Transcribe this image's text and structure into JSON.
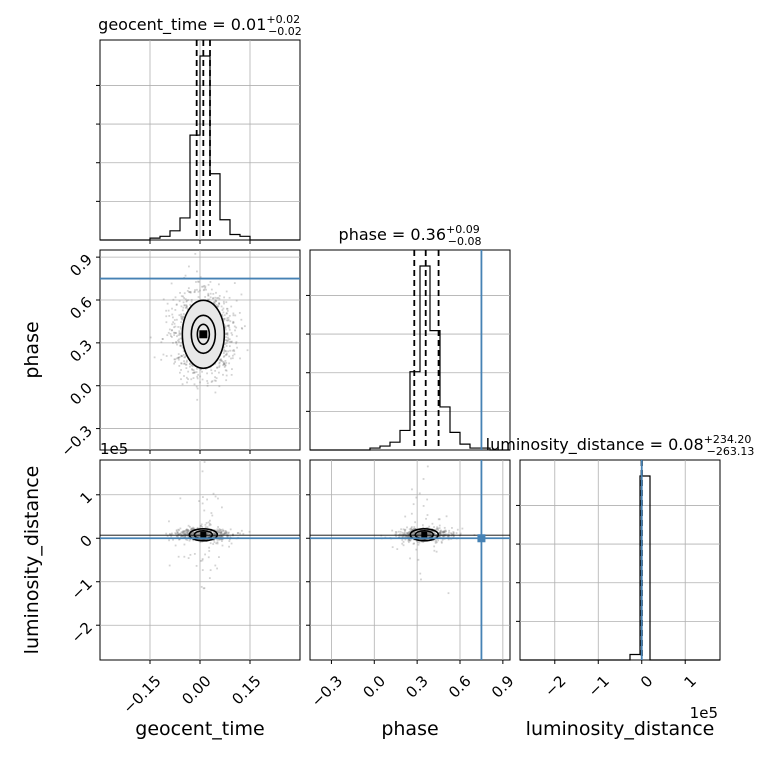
{
  "chart_data": [
    {
      "type": "histogram",
      "panel": "geocent_time-1d",
      "title": {
        "param": "geocent_time",
        "median": "0.01",
        "upper": "+0.02",
        "lower": "−0.02"
      },
      "xlim": [
        -0.3,
        0.3
      ],
      "bin_edges": [
        -0.3,
        -0.27,
        -0.24,
        -0.21,
        -0.18,
        -0.15,
        -0.12,
        -0.09,
        -0.06,
        -0.03,
        0.0,
        0.03,
        0.06,
        0.09,
        0.12,
        0.15,
        0.18,
        0.21,
        0.24,
        0.27,
        0.3
      ],
      "counts": [
        0,
        0,
        0,
        0,
        0,
        0.01,
        0.02,
        0.05,
        0.12,
        0.57,
        1.0,
        0.36,
        0.11,
        0.03,
        0.02,
        0.0,
        0,
        0,
        0,
        0
      ],
      "quantiles": [
        -0.01,
        0.01,
        0.03
      ],
      "xticks": [
        "−0.15",
        "0.00",
        "0.15"
      ],
      "xticks_shown": false
    },
    {
      "type": "scatter",
      "panel": "phase-vs-geocent_time",
      "xlim": [
        -0.3,
        0.3
      ],
      "ylim": [
        -0.45,
        0.95
      ],
      "yticks": [
        "0.9",
        "0.6",
        "0.3",
        "0.0",
        "−0.3"
      ],
      "ylabel": "phase",
      "density_peak": {
        "x": 0.01,
        "y": 0.36
      },
      "truth": {
        "phase": 0.75
      }
    },
    {
      "type": "histogram",
      "panel": "phase-1d",
      "title": {
        "param": "phase",
        "median": "0.36",
        "upper": "+0.09",
        "lower": "−0.08"
      },
      "xlim": [
        -0.45,
        0.95
      ],
      "bin_edges": [
        -0.45,
        -0.38,
        -0.31,
        -0.24,
        -0.17,
        -0.1,
        -0.03,
        0.04,
        0.11,
        0.18,
        0.25,
        0.32,
        0.39,
        0.46,
        0.53,
        0.6,
        0.67,
        0.74,
        0.81,
        0.88,
        0.95
      ],
      "counts": [
        0,
        0,
        0,
        0,
        0,
        0,
        0.01,
        0.02,
        0.04,
        0.1,
        0.4,
        0.94,
        0.61,
        0.22,
        0.09,
        0.03,
        0.01,
        0.01,
        0,
        0
      ],
      "quantiles": [
        0.28,
        0.36,
        0.45
      ],
      "truth": 0.75
    },
    {
      "type": "scatter",
      "panel": "luminosity_distance-vs-geocent_time",
      "xlim": [
        -0.3,
        0.3
      ],
      "ylim": [
        -2.8,
        1.8
      ],
      "y_offset_label": "1e5",
      "yticks": [
        "1",
        "0",
        "−1",
        "−2"
      ],
      "xticks": [
        "−0.15",
        "0.00",
        "0.15"
      ],
      "xlabel": "geocent_time",
      "ylabel": "luminosity_distance",
      "density_peak": {
        "x": 0.01,
        "y": 0.08
      },
      "truth": {
        "luminosity_distance": 0.0
      }
    },
    {
      "type": "scatter",
      "panel": "luminosity_distance-vs-phase",
      "xlim": [
        -0.45,
        0.95
      ],
      "ylim": [
        -2.8,
        1.8
      ],
      "xticks": [
        "−0.3",
        "0.0",
        "0.3",
        "0.6",
        "0.9"
      ],
      "xlabel": "phase",
      "density_peak": {
        "x": 0.35,
        "y": 0.08
      },
      "truth": {
        "phase": 0.75,
        "luminosity_distance": 0.0
      }
    },
    {
      "type": "histogram",
      "panel": "luminosity_distance-1d",
      "title": {
        "param": "luminosity_distance",
        "median": "0.08",
        "upper": "+234.20",
        "lower": "−263.13"
      },
      "xlim": [
        -2.8,
        1.8
      ],
      "x_offset_label": "1e5",
      "bin_edges": [
        -2.8,
        -2.57,
        -2.34,
        -2.11,
        -1.88,
        -1.65,
        -1.42,
        -1.19,
        -0.96,
        -0.73,
        -0.5,
        -0.27,
        -0.04,
        0.19,
        0.42,
        0.65,
        0.88,
        1.11,
        1.34,
        1.57,
        1.8
      ],
      "counts": [
        0,
        0,
        0,
        0,
        0,
        0,
        0,
        0,
        0,
        0,
        0,
        0.03,
        1.0,
        0,
        0,
        0,
        0,
        0,
        0,
        0
      ],
      "quantiles": [
        -0.003,
        0.0,
        0.003
      ],
      "truth": 0.0,
      "xticks": [
        "−2",
        "−1",
        "0",
        "1"
      ],
      "xlabel": "luminosity_distance"
    }
  ]
}
